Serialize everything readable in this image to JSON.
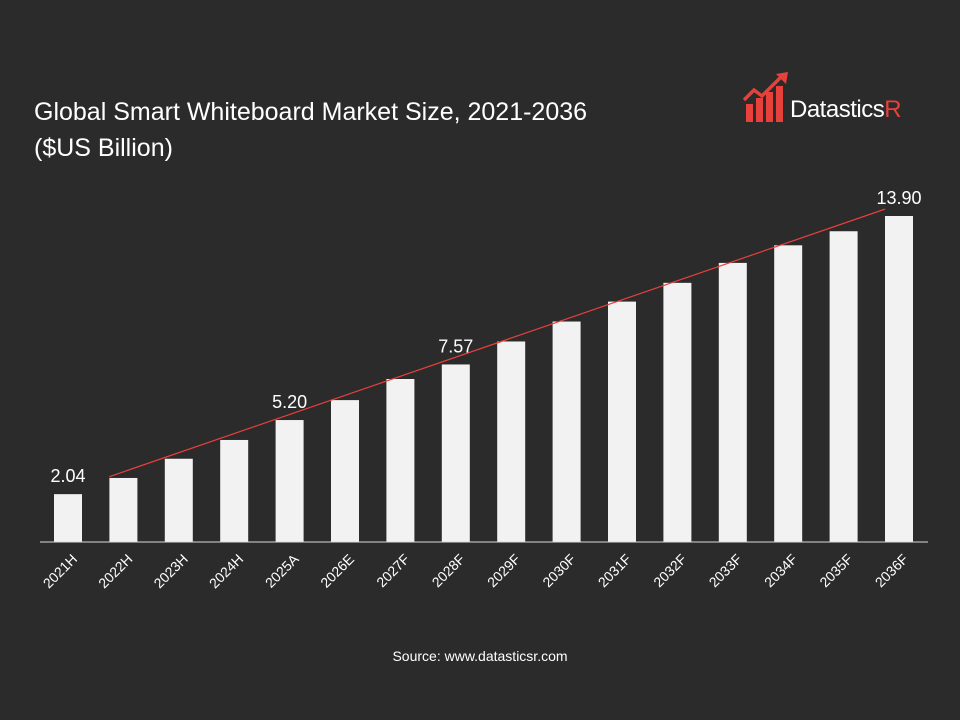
{
  "title": {
    "line1": "Global Smart Whiteboard Market Size, 2021-2036",
    "line2": "($US Billion)"
  },
  "logo": {
    "brand_main": "Datastics",
    "brand_accent": "R",
    "accent_color": "#e8403b"
  },
  "source": "Source: www.datasticsr.com",
  "colors": {
    "background": "#2b2b2b",
    "bar": "#f2f2f2",
    "trendline": "#e8403b",
    "text": "#ffffff"
  },
  "chart_data": {
    "type": "bar",
    "title": "Global Smart Whiteboard Market Size, 2021-2036 ($US Billion)",
    "categories": [
      "2021H",
      "2022H",
      "2023H",
      "2024H",
      "2025A",
      "2026E",
      "2027F",
      "2028F",
      "2029F",
      "2030F",
      "2031F",
      "2032F",
      "2033F",
      "2034F",
      "2035F",
      "2036F"
    ],
    "values": [
      2.04,
      2.73,
      3.55,
      4.35,
      5.2,
      6.05,
      6.95,
      7.57,
      8.55,
      9.4,
      10.25,
      11.05,
      11.9,
      12.65,
      13.25,
      13.9
    ],
    "data_labels": [
      {
        "index": 0,
        "text": "2.04"
      },
      {
        "index": 4,
        "text": "5.20"
      },
      {
        "index": 7,
        "text": "7.57"
      },
      {
        "index": 15,
        "text": "13.90"
      }
    ],
    "trendline": {
      "type": "linear",
      "start_index": 1,
      "end_index": 15
    },
    "ylim": [
      0,
      14.5
    ],
    "xlabel": "",
    "ylabel": "",
    "grid": false,
    "legend": "none"
  }
}
